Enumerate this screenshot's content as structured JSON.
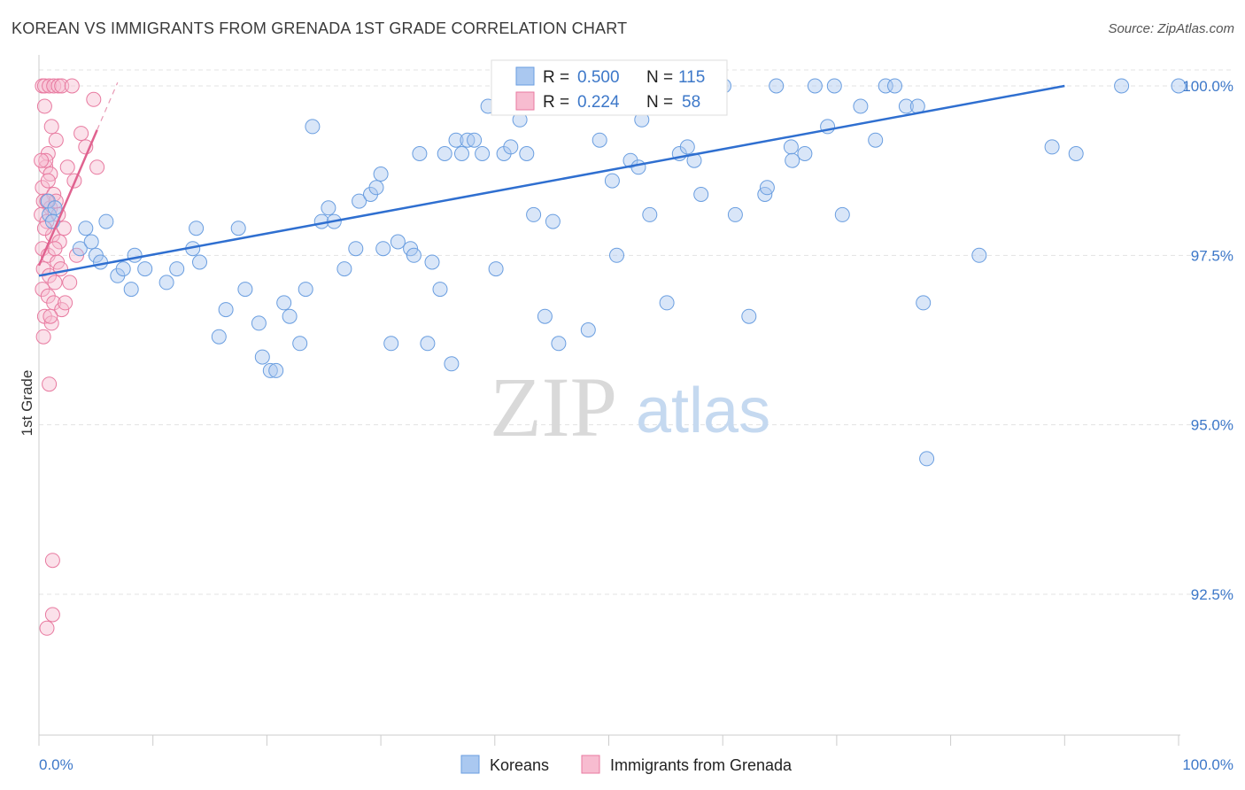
{
  "title": "KOREAN VS IMMIGRANTS FROM GRENADA 1ST GRADE CORRELATION CHART",
  "source": "Source: ZipAtlas.com",
  "watermark": {
    "zip": "ZIP",
    "atlas": "atlas"
  },
  "chart_data": {
    "type": "scatter",
    "xlabel": "",
    "ylabel": "1st Grade",
    "xlim": [
      0,
      100
    ],
    "ylim": [
      90.0,
      100.25
    ],
    "x_tick_labels": [
      "0.0%",
      "100.0%"
    ],
    "y_ticks": [
      92.5,
      95.0,
      97.5,
      100.0
    ],
    "y_tick_labels": [
      "92.5%",
      "95.0%",
      "97.5%",
      "100.0%"
    ],
    "grid": true,
    "legend": {
      "position": "top-center",
      "rows": [
        {
          "r_label": "R =",
          "r_value": "0.500",
          "n_label": "N =",
          "n_value": "115"
        },
        {
          "r_label": "R =",
          "r_value": "0.224",
          "n_label": "N =",
          "n_value": "58"
        }
      ]
    },
    "series": [
      {
        "name": "Koreans",
        "color": "#6a9ee0",
        "fill": "#aac8f0",
        "trend": {
          "x": [
            0,
            90
          ],
          "y": [
            97.2,
            100.0
          ]
        },
        "points": [
          [
            0.8,
            98.3
          ],
          [
            0.9,
            98.1
          ],
          [
            1.4,
            98.2
          ],
          [
            1.2,
            98.0
          ],
          [
            4.1,
            97.9
          ],
          [
            3.6,
            97.6
          ],
          [
            4.6,
            97.7
          ],
          [
            5.0,
            97.5
          ],
          [
            5.9,
            98.0
          ],
          [
            6.9,
            97.2
          ],
          [
            5.4,
            97.4
          ],
          [
            8.1,
            97.0
          ],
          [
            7.4,
            97.3
          ],
          [
            9.3,
            97.3
          ],
          [
            8.4,
            97.5
          ],
          [
            11.2,
            97.1
          ],
          [
            12.1,
            97.3
          ],
          [
            13.5,
            97.6
          ],
          [
            13.8,
            97.9
          ],
          [
            14.1,
            97.4
          ],
          [
            15.8,
            96.3
          ],
          [
            16.4,
            96.7
          ],
          [
            17.5,
            97.9
          ],
          [
            18.1,
            97.0
          ],
          [
            19.3,
            96.5
          ],
          [
            19.6,
            96.0
          ],
          [
            20.3,
            95.8
          ],
          [
            20.8,
            95.8
          ],
          [
            21.5,
            96.8
          ],
          [
            22.0,
            96.6
          ],
          [
            22.9,
            96.2
          ],
          [
            23.4,
            97.0
          ],
          [
            24.0,
            99.4
          ],
          [
            24.8,
            98.0
          ],
          [
            25.4,
            98.2
          ],
          [
            25.9,
            98.0
          ],
          [
            26.8,
            97.3
          ],
          [
            27.8,
            97.6
          ],
          [
            28.1,
            98.3
          ],
          [
            29.1,
            98.4
          ],
          [
            29.6,
            98.5
          ],
          [
            30.0,
            98.7
          ],
          [
            30.2,
            97.6
          ],
          [
            30.9,
            96.2
          ],
          [
            31.5,
            97.7
          ],
          [
            32.6,
            97.6
          ],
          [
            32.9,
            97.5
          ],
          [
            33.4,
            99.0
          ],
          [
            34.1,
            96.2
          ],
          [
            34.5,
            97.4
          ],
          [
            35.2,
            97.0
          ],
          [
            35.6,
            99.0
          ],
          [
            36.2,
            95.9
          ],
          [
            36.6,
            99.2
          ],
          [
            37.1,
            99.0
          ],
          [
            37.6,
            99.2
          ],
          [
            38.2,
            99.2
          ],
          [
            38.9,
            99.0
          ],
          [
            39.4,
            99.7
          ],
          [
            40.1,
            97.3
          ],
          [
            40.8,
            99.0
          ],
          [
            41.4,
            99.1
          ],
          [
            42.2,
            99.5
          ],
          [
            42.8,
            99.0
          ],
          [
            43.4,
            98.1
          ],
          [
            44.1,
            100.0
          ],
          [
            44.4,
            96.6
          ],
          [
            45.1,
            98.0
          ],
          [
            45.6,
            96.2
          ],
          [
            46.2,
            99.7
          ],
          [
            46.8,
            100.0
          ],
          [
            47.6,
            100.0
          ],
          [
            48.2,
            96.4
          ],
          [
            48.8,
            100.0
          ],
          [
            49.2,
            99.2
          ],
          [
            50.3,
            98.6
          ],
          [
            50.7,
            97.5
          ],
          [
            51.9,
            98.9
          ],
          [
            52.6,
            98.8
          ],
          [
            52.9,
            99.5
          ],
          [
            53.6,
            98.1
          ],
          [
            54.1,
            100.0
          ],
          [
            55.1,
            96.8
          ],
          [
            55.6,
            100.0
          ],
          [
            56.2,
            99.0
          ],
          [
            56.9,
            99.1
          ],
          [
            57.5,
            98.9
          ],
          [
            58.1,
            98.4
          ],
          [
            59.0,
            100.0
          ],
          [
            60.1,
            100.0
          ],
          [
            61.1,
            98.1
          ],
          [
            62.3,
            96.6
          ],
          [
            63.7,
            98.4
          ],
          [
            63.9,
            98.5
          ],
          [
            64.7,
            100.0
          ],
          [
            66.0,
            99.1
          ],
          [
            66.1,
            98.9
          ],
          [
            67.2,
            99.0
          ],
          [
            68.1,
            100.0
          ],
          [
            69.2,
            99.4
          ],
          [
            69.8,
            100.0
          ],
          [
            70.5,
            98.1
          ],
          [
            72.1,
            99.7
          ],
          [
            73.4,
            99.2
          ],
          [
            74.3,
            100.0
          ],
          [
            75.1,
            100.0
          ],
          [
            76.1,
            99.7
          ],
          [
            77.1,
            99.7
          ],
          [
            77.6,
            96.8
          ],
          [
            77.9,
            94.5
          ],
          [
            82.5,
            97.5
          ],
          [
            88.9,
            99.1
          ],
          [
            91.0,
            99.0
          ],
          [
            95.0,
            100.0
          ],
          [
            100.0,
            100.0
          ]
        ]
      },
      {
        "name": "Immigrants from Grenada",
        "color": "#e87aa0",
        "fill": "#f7bcd0",
        "trend": {
          "x": [
            0,
            5.1
          ],
          "y": [
            97.35,
            99.35
          ]
        },
        "trend_dashed": {
          "x": [
            5.1,
            6.9
          ],
          "y": [
            99.35,
            100.05
          ]
        },
        "points": [
          [
            0.3,
            100.0
          ],
          [
            0.5,
            100.0
          ],
          [
            0.9,
            100.0
          ],
          [
            1.3,
            100.0
          ],
          [
            1.7,
            100.0
          ],
          [
            2.0,
            100.0
          ],
          [
            2.9,
            100.0
          ],
          [
            0.5,
            99.7
          ],
          [
            1.1,
            99.4
          ],
          [
            1.5,
            99.2
          ],
          [
            0.8,
            99.0
          ],
          [
            0.6,
            98.8
          ],
          [
            1.0,
            98.7
          ],
          [
            0.3,
            98.5
          ],
          [
            0.8,
            98.6
          ],
          [
            1.3,
            98.4
          ],
          [
            0.4,
            98.3
          ],
          [
            1.0,
            98.2
          ],
          [
            1.5,
            98.3
          ],
          [
            0.2,
            98.1
          ],
          [
            0.7,
            98.0
          ],
          [
            1.2,
            97.8
          ],
          [
            1.8,
            97.7
          ],
          [
            0.3,
            97.6
          ],
          [
            0.8,
            97.5
          ],
          [
            1.6,
            97.4
          ],
          [
            0.4,
            97.3
          ],
          [
            0.9,
            97.2
          ],
          [
            1.4,
            97.1
          ],
          [
            0.3,
            97.0
          ],
          [
            0.8,
            96.9
          ],
          [
            1.3,
            96.8
          ],
          [
            2.0,
            96.7
          ],
          [
            0.5,
            96.6
          ],
          [
            1.1,
            96.5
          ],
          [
            0.4,
            96.3
          ],
          [
            0.9,
            95.6
          ],
          [
            1.2,
            93.0
          ],
          [
            1.2,
            92.2
          ],
          [
            0.7,
            92.0
          ],
          [
            2.5,
            98.8
          ],
          [
            3.1,
            98.6
          ],
          [
            3.3,
            97.5
          ],
          [
            4.1,
            99.1
          ],
          [
            5.1,
            98.8
          ],
          [
            2.2,
            97.9
          ],
          [
            1.9,
            97.3
          ],
          [
            0.6,
            98.9
          ],
          [
            2.7,
            97.1
          ],
          [
            3.7,
            99.3
          ],
          [
            0.2,
            98.9
          ],
          [
            1.7,
            98.1
          ],
          [
            0.5,
            97.9
          ],
          [
            2.3,
            96.8
          ],
          [
            1.0,
            96.6
          ],
          [
            4.8,
            99.8
          ],
          [
            0.7,
            98.3
          ],
          [
            1.4,
            97.6
          ]
        ]
      }
    ]
  }
}
